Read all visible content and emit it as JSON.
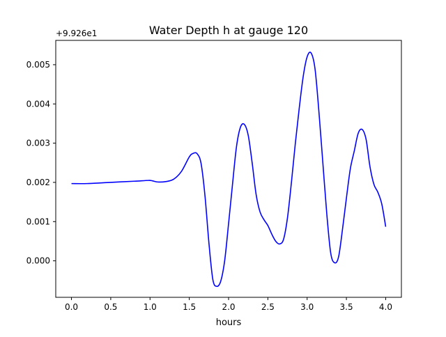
{
  "chart_data": {
    "type": "line",
    "title": "Water Depth h at gauge 120",
    "xlabel": "hours",
    "ylabel": "",
    "offset_label": "+9.926e1",
    "xlim": [
      -0.2,
      4.2
    ],
    "ylim": [
      -0.00093,
      0.00562
    ],
    "grid": false,
    "legend": "none",
    "x_ticks": [
      {
        "value": 0.0,
        "label": "0.0"
      },
      {
        "value": 0.5,
        "label": "0.5"
      },
      {
        "value": 1.0,
        "label": "1.0"
      },
      {
        "value": 1.5,
        "label": "1.5"
      },
      {
        "value": 2.0,
        "label": "2.0"
      },
      {
        "value": 2.5,
        "label": "2.5"
      },
      {
        "value": 3.0,
        "label": "3.0"
      },
      {
        "value": 3.5,
        "label": "3.5"
      },
      {
        "value": 4.0,
        "label": "4.0"
      }
    ],
    "y_ticks": [
      {
        "value": 0.0,
        "label": "0.000"
      },
      {
        "value": 0.001,
        "label": "0.001"
      },
      {
        "value": 0.002,
        "label": "0.002"
      },
      {
        "value": 0.003,
        "label": "0.003"
      },
      {
        "value": 0.004,
        "label": "0.004"
      },
      {
        "value": 0.005,
        "label": "0.005"
      }
    ],
    "series": [
      {
        "color": "#0000ff",
        "x": [
          0.0,
          0.2,
          0.5,
          0.8,
          0.98,
          1.03,
          1.1,
          1.2,
          1.3,
          1.4,
          1.5,
          1.55,
          1.6,
          1.65,
          1.7,
          1.75,
          1.8,
          1.85,
          1.9,
          1.95,
          2.0,
          2.05,
          2.1,
          2.15,
          2.2,
          2.25,
          2.3,
          2.35,
          2.4,
          2.45,
          2.5,
          2.55,
          2.6,
          2.65,
          2.7,
          2.75,
          2.8,
          2.85,
          2.9,
          2.95,
          3.0,
          3.05,
          3.1,
          3.15,
          3.2,
          3.25,
          3.3,
          3.35,
          3.4,
          3.45,
          3.5,
          3.55,
          3.6,
          3.65,
          3.7,
          3.75,
          3.8,
          3.85,
          3.9,
          3.95,
          4.0
        ],
        "y": [
          0.00197,
          0.00197,
          0.002,
          0.00203,
          0.00205,
          0.00204,
          0.00201,
          0.00202,
          0.00208,
          0.00228,
          0.00265,
          0.00274,
          0.00273,
          0.00248,
          0.00165,
          0.00045,
          -0.00048,
          -0.00065,
          -0.00052,
          0.0,
          0.00095,
          0.00195,
          0.0029,
          0.0034,
          0.00348,
          0.0032,
          0.0025,
          0.0017,
          0.00125,
          0.00105,
          0.0009,
          0.00068,
          0.0005,
          0.00043,
          0.00055,
          0.0011,
          0.002,
          0.003,
          0.0039,
          0.0047,
          0.0052,
          0.0053,
          0.0049,
          0.0038,
          0.0025,
          0.0012,
          0.0002,
          -5e-05,
          0.0001,
          0.0008,
          0.0016,
          0.00235,
          0.0028,
          0.00325,
          0.00335,
          0.0031,
          0.0024,
          0.00195,
          0.00175,
          0.00145,
          0.00087
        ]
      }
    ]
  }
}
